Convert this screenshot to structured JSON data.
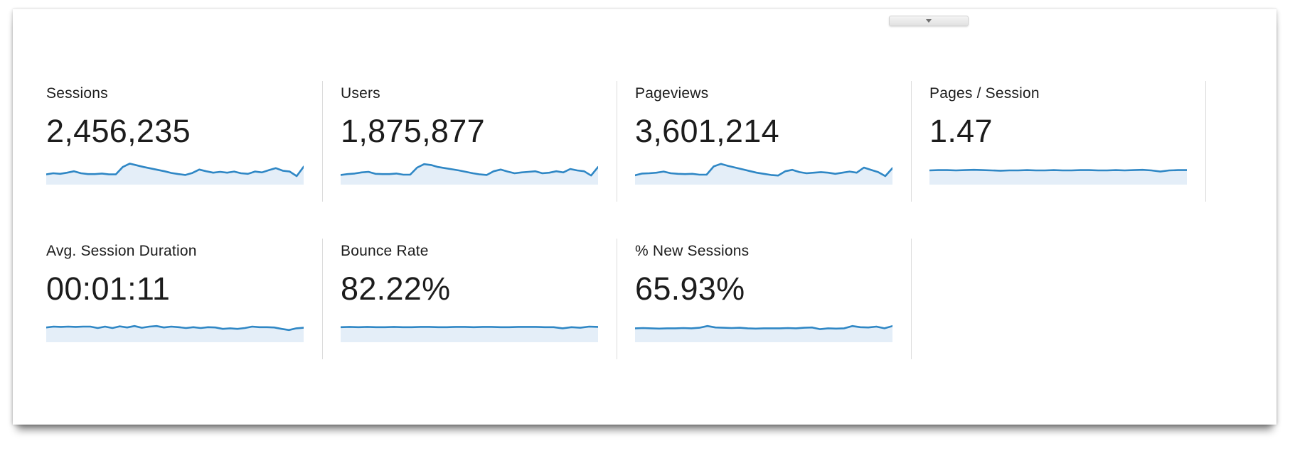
{
  "panel": {
    "name": "analytics-metrics-summary",
    "collapse_button": {
      "icon": "chevron-down-icon"
    }
  },
  "metrics": [
    {
      "label": "Sessions",
      "value": "2,456,235"
    },
    {
      "label": "Users",
      "value": "1,875,877"
    },
    {
      "label": "Pageviews",
      "value": "3,601,214"
    },
    {
      "label": "Pages / Session",
      "value": "1.47"
    },
    {
      "label": "Avg. Session Duration",
      "value": "00:01:11"
    },
    {
      "label": "Bounce Rate",
      "value": "82.22%"
    },
    {
      "label": "% New Sessions",
      "value": "65.93%"
    }
  ],
  "colors": {
    "spark_line": "#2f87c5",
    "spark_fill": "#e4eef8",
    "divider": "#dcdcdc",
    "text": "#1c1c1c"
  },
  "chart_data": [
    {
      "type": "area",
      "title": "Sessions sparkline",
      "summary_value": "2,456,235",
      "axes_hidden": true,
      "ylim": [
        0,
        1
      ],
      "values": [
        0.36,
        0.4,
        0.38,
        0.42,
        0.47,
        0.4,
        0.37,
        0.37,
        0.39,
        0.36,
        0.36,
        0.62,
        0.74,
        0.68,
        0.62,
        0.57,
        0.52,
        0.47,
        0.41,
        0.37,
        0.34,
        0.41,
        0.53,
        0.47,
        0.42,
        0.45,
        0.42,
        0.46,
        0.4,
        0.38,
        0.46,
        0.43,
        0.51,
        0.58,
        0.49,
        0.46,
        0.3,
        0.63
      ]
    },
    {
      "type": "area",
      "title": "Users sparkline",
      "summary_value": "1,875,877",
      "axes_hidden": true,
      "ylim": [
        0,
        1
      ],
      "values": [
        0.34,
        0.37,
        0.39,
        0.43,
        0.45,
        0.38,
        0.37,
        0.37,
        0.39,
        0.35,
        0.35,
        0.6,
        0.72,
        0.69,
        0.62,
        0.58,
        0.54,
        0.5,
        0.45,
        0.4,
        0.36,
        0.34,
        0.47,
        0.53,
        0.46,
        0.4,
        0.43,
        0.45,
        0.47,
        0.4,
        0.42,
        0.47,
        0.43,
        0.55,
        0.5,
        0.47,
        0.32,
        0.62
      ]
    },
    {
      "type": "area",
      "title": "Pageviews sparkline",
      "summary_value": "3,601,214",
      "axes_hidden": true,
      "ylim": [
        0,
        1
      ],
      "values": [
        0.33,
        0.39,
        0.4,
        0.42,
        0.46,
        0.4,
        0.38,
        0.37,
        0.38,
        0.35,
        0.35,
        0.64,
        0.73,
        0.66,
        0.6,
        0.54,
        0.48,
        0.42,
        0.38,
        0.34,
        0.32,
        0.47,
        0.52,
        0.44,
        0.4,
        0.42,
        0.44,
        0.42,
        0.38,
        0.42,
        0.46,
        0.42,
        0.6,
        0.52,
        0.44,
        0.3,
        0.58
      ]
    },
    {
      "type": "area",
      "title": "Pages / Session sparkline",
      "summary_value": "1.47",
      "axes_hidden": true,
      "ylim": [
        0,
        1
      ],
      "values": [
        0.5,
        0.51,
        0.51,
        0.5,
        0.51,
        0.52,
        0.51,
        0.5,
        0.49,
        0.5,
        0.5,
        0.51,
        0.5,
        0.5,
        0.51,
        0.5,
        0.5,
        0.51,
        0.51,
        0.5,
        0.5,
        0.51,
        0.5,
        0.51,
        0.52,
        0.5,
        0.46,
        0.5,
        0.51,
        0.51
      ]
    },
    {
      "type": "area",
      "title": "Avg. Session Duration sparkline",
      "summary_value": "00:01:11",
      "axes_hidden": true,
      "ylim": [
        0,
        1
      ],
      "values": [
        0.52,
        0.55,
        0.54,
        0.55,
        0.54,
        0.55,
        0.55,
        0.5,
        0.55,
        0.5,
        0.56,
        0.52,
        0.57,
        0.51,
        0.55,
        0.57,
        0.52,
        0.55,
        0.53,
        0.5,
        0.53,
        0.5,
        0.53,
        0.52,
        0.47,
        0.49,
        0.47,
        0.5,
        0.55,
        0.53,
        0.53,
        0.52,
        0.47,
        0.43,
        0.49,
        0.51
      ]
    },
    {
      "type": "area",
      "title": "Bounce Rate sparkline",
      "summary_value": "82.22%",
      "axes_hidden": true,
      "ylim": [
        0,
        1
      ],
      "values": [
        0.53,
        0.54,
        0.53,
        0.54,
        0.53,
        0.53,
        0.54,
        0.53,
        0.53,
        0.54,
        0.54,
        0.53,
        0.53,
        0.54,
        0.54,
        0.53,
        0.54,
        0.54,
        0.53,
        0.53,
        0.54,
        0.54,
        0.54,
        0.53,
        0.53,
        0.49,
        0.53,
        0.51,
        0.55,
        0.54
      ]
    },
    {
      "type": "area",
      "title": "% New Sessions sparkline",
      "summary_value": "65.93%",
      "axes_hidden": true,
      "ylim": [
        0,
        1
      ],
      "values": [
        0.49,
        0.5,
        0.49,
        0.48,
        0.49,
        0.49,
        0.5,
        0.49,
        0.51,
        0.57,
        0.52,
        0.51,
        0.5,
        0.51,
        0.49,
        0.48,
        0.49,
        0.49,
        0.49,
        0.5,
        0.49,
        0.51,
        0.52,
        0.46,
        0.49,
        0.48,
        0.49,
        0.57,
        0.53,
        0.52,
        0.55,
        0.49,
        0.57
      ]
    }
  ]
}
